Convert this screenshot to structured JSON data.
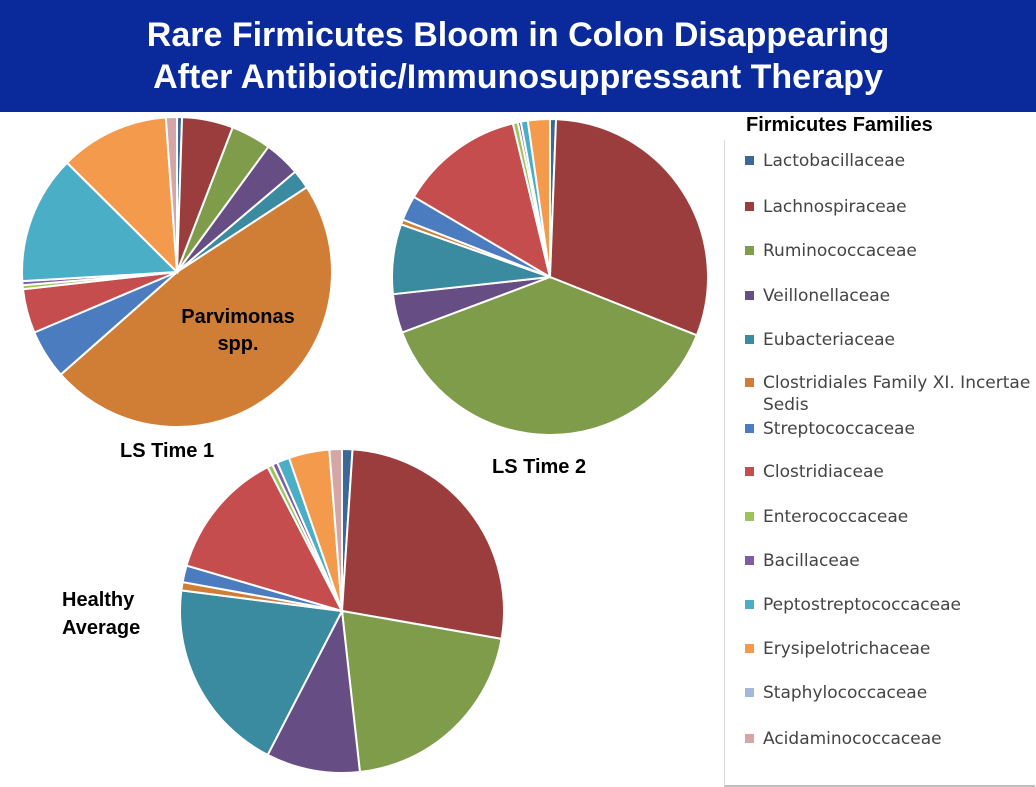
{
  "title": {
    "line1": "Rare Firmicutes Bloom in Colon Disappearing",
    "line2": "After Antibiotic/Immunosuppressant Therapy"
  },
  "legend": {
    "title": "Firmicutes Families",
    "items": [
      {
        "label": "Lactobacillaceae",
        "color": "#3c6898"
      },
      {
        "label": "Lachnospiraceae",
        "color": "#9c3d3d"
      },
      {
        "label": "Ruminococcaceae",
        "color": "#7e9c4a"
      },
      {
        "label": "Veillonellaceae",
        "color": "#664d84"
      },
      {
        "label": "Eubacteriaceae",
        "color": "#3a8aa0"
      },
      {
        "label": "Clostridiales Family XI. Incertae Sedis",
        "color": "#d07d36"
      },
      {
        "label": "Streptococcaceae",
        "color": "#4c7cc0"
      },
      {
        "label": "Clostridiaceae",
        "color": "#c64d4d"
      },
      {
        "label": "Enterococcaceae",
        "color": "#9cc45a"
      },
      {
        "label": "Bacillaceae",
        "color": "#7e5ca4"
      },
      {
        "label": "Peptostreptococcaceae",
        "color": "#4aafc6"
      },
      {
        "label": "Erysipelotrichaceae",
        "color": "#f39a4c"
      },
      {
        "label": "Staphylococcaceae",
        "color": "#a3b8dc"
      },
      {
        "label": "Acidaminococcaceae",
        "color": "#d6a6a6"
      }
    ]
  },
  "chart_data": [
    {
      "type": "pie",
      "title": "LS Time 1",
      "annotation": "Parvimonas spp.",
      "categories": [
        "Lactobacillaceae",
        "Lachnospiraceae",
        "Ruminococcaceae",
        "Veillonellaceae",
        "Eubacteriaceae",
        "Clostridiales Family XI. Incertae Sedis",
        "Streptococcaceae",
        "Clostridiaceae",
        "Enterococcaceae",
        "Bacillaceae",
        "Peptostreptococcaceae",
        "Erysipelotrichaceae",
        "Staphylococcaceae",
        "Acidaminococcaceae"
      ],
      "values": [
        0.5,
        5.1,
        4.0,
        3.6,
        1.9,
        45.6,
        4.9,
        4.4,
        0.4,
        0.4,
        12.8,
        10.9,
        0.0,
        1.1
      ]
    },
    {
      "type": "pie",
      "title": "LS Time 2",
      "categories": [
        "Lactobacillaceae",
        "Lachnospiraceae",
        "Ruminococcaceae",
        "Veillonellaceae",
        "Eubacteriaceae",
        "Clostridiales Family XI. Incertae Sedis",
        "Streptococcaceae",
        "Clostridiaceae",
        "Enterococcaceae",
        "Bacillaceae",
        "Peptostreptococcaceae",
        "Erysipelotrichaceae",
        "Staphylococcaceae",
        "Acidaminococcaceae"
      ],
      "values": [
        0.6,
        29.8,
        37.5,
        3.9,
        7.0,
        0.5,
        2.5,
        12.5,
        0.5,
        0.3,
        0.7,
        2.2,
        0.0,
        0.0
      ]
    },
    {
      "type": "pie",
      "title": "Healthy Average",
      "categories": [
        "Lactobacillaceae",
        "Lachnospiraceae",
        "Ruminococcaceae",
        "Veillonellaceae",
        "Eubacteriaceae",
        "Clostridiales Family XI. Incertae Sedis",
        "Streptococcaceae",
        "Clostridiaceae",
        "Enterococcaceae",
        "Bacillaceae",
        "Peptostreptococcaceae",
        "Erysipelotrichaceae",
        "Staphylococcaceae",
        "Acidaminococcaceae"
      ],
      "values": [
        1.0,
        25.7,
        19.7,
        9.0,
        18.7,
        0.8,
        1.6,
        12.4,
        0.5,
        0.5,
        1.2,
        3.9,
        0.0,
        1.2
      ]
    }
  ]
}
